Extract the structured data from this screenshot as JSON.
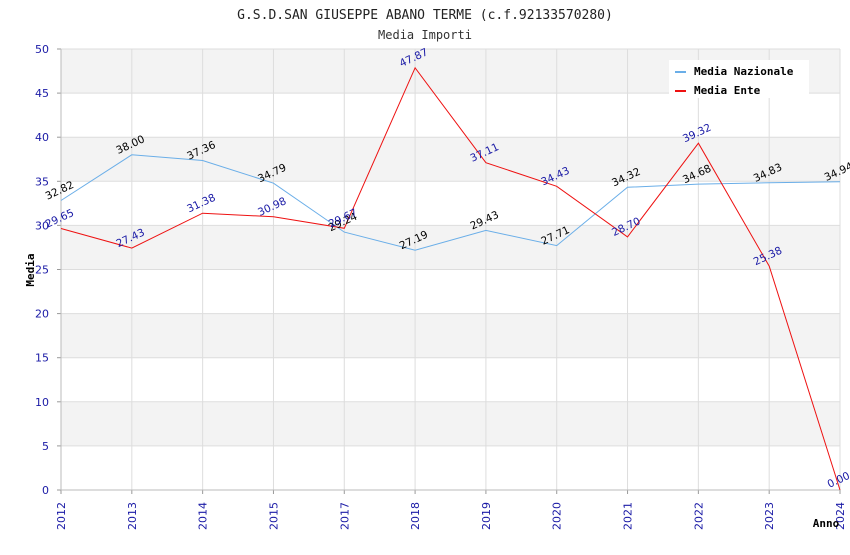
{
  "chart_data": {
    "type": "line",
    "title": "G.S.D.SAN GIUSEPPE ABANO TERME (c.f.92133570280)",
    "subtitle": "Media Importi",
    "xlabel": "Anno",
    "ylabel": "Media",
    "ylim": [
      0,
      50
    ],
    "yticks": [
      "0",
      "5",
      "10",
      "15",
      "20",
      "25",
      "30",
      "35",
      "40",
      "45",
      "50"
    ],
    "categories": [
      "2012",
      "2013",
      "2014",
      "2015",
      "2017",
      "2018",
      "2019",
      "2020",
      "2021",
      "2022",
      "2023",
      "2024"
    ],
    "grid": true,
    "legend_position": "top-right",
    "series": [
      {
        "name": "Media Nazionale",
        "color": "#6aaee8",
        "label_color": "#000000",
        "values": [
          32.82,
          38.0,
          37.36,
          34.79,
          29.24,
          27.19,
          29.43,
          27.71,
          34.32,
          34.68,
          34.83,
          34.94
        ],
        "labels": [
          "32.82",
          "38.00",
          "37.36",
          "34.79",
          "29.24",
          "27.19",
          "29.43",
          "27.71",
          "34.32",
          "34.68",
          "34.83",
          "34.94"
        ]
      },
      {
        "name": "Media Ente",
        "color": "#ee1111",
        "label_color": "#1a1aa6",
        "values": [
          29.65,
          27.43,
          31.38,
          30.98,
          29.67,
          47.87,
          37.11,
          34.43,
          28.7,
          39.32,
          25.38,
          0.0
        ],
        "labels": [
          "29.65",
          "27.43",
          "31.38",
          "30.98",
          "29.67",
          "47.87",
          "37.11",
          "34.43",
          "28.70",
          "39.32",
          "25.38",
          "0.00"
        ]
      }
    ]
  }
}
